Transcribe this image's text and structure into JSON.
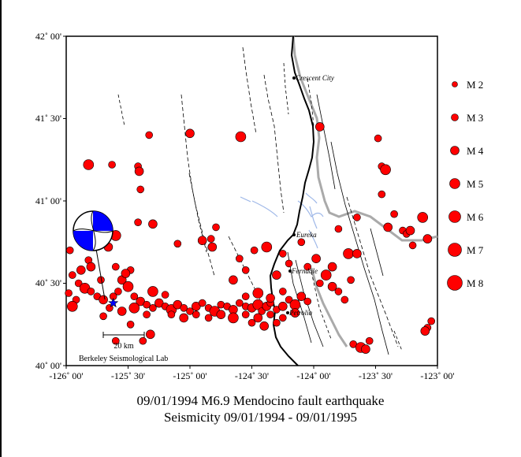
{
  "map": {
    "axes": {
      "lat_labels": [
        "42˚ 00'",
        "41˚ 30'",
        "41˚ 00'",
        "40˚ 30'",
        "40˚ 00'"
      ],
      "lon_labels": [
        "-126˚ 00'",
        "-125˚ 30'",
        "-125˚ 00'",
        "-124˚ 30'",
        "-124˚ 00'",
        "-123˚ 30'",
        "-123˚ 00'"
      ],
      "lat_range": [
        40.0,
        42.0
      ],
      "lon_range": [
        -126.0,
        -123.0
      ]
    },
    "places": {
      "crescent_city": "Crescent City",
      "eureka": "Eureka",
      "ferndale": "Ferndale",
      "petrolia": "Petrolia"
    },
    "scale_bar": "20 km",
    "credit": "Berkeley Seismological Lab",
    "legend": [
      "M 2",
      "M 3",
      "M 4",
      "M 5",
      "M 6",
      "M 7",
      "M 8"
    ],
    "colors": {
      "event": "#ff0000",
      "event_outline": "#000000",
      "water": "#9fb8e8",
      "state_border": "#aaaaaa",
      "mechanism": "#0000ff"
    }
  },
  "chart_data": {
    "type": "scatter",
    "x_label": "",
    "y_label": "",
    "xlim": [
      -126.0,
      -123.0
    ],
    "ylim": [
      40.0,
      42.0
    ],
    "events": [
      [
        -125.82,
        41.22
      ],
      [
        -125.63,
        41.22
      ],
      [
        -125.42,
        41.21
      ],
      [
        -125.41,
        41.18
      ],
      [
        -125.4,
        41.07
      ],
      [
        -125.33,
        41.4
      ],
      [
        -125.0,
        41.41
      ],
      [
        -124.59,
        41.39
      ],
      [
        -125.42,
        40.87
      ],
      [
        -125.3,
        40.86
      ],
      [
        -124.79,
        40.84
      ],
      [
        -124.83,
        40.77
      ],
      [
        -124.9,
        40.76
      ],
      [
        -125.1,
        40.74
      ],
      [
        -125.6,
        40.79
      ],
      [
        -125.66,
        40.72
      ],
      [
        -125.97,
        40.7
      ],
      [
        -125.82,
        40.64
      ],
      [
        -125.8,
        40.6
      ],
      [
        -125.95,
        40.55
      ],
      [
        -125.9,
        40.5
      ],
      [
        -125.85,
        40.47
      ],
      [
        -125.8,
        40.45
      ],
      [
        -125.75,
        40.42
      ],
      [
        -125.7,
        40.4
      ],
      [
        -125.92,
        40.4
      ],
      [
        -125.6,
        40.6
      ],
      [
        -125.55,
        40.52
      ],
      [
        -125.5,
        40.48
      ],
      [
        -125.45,
        40.42
      ],
      [
        -125.4,
        40.39
      ],
      [
        -125.35,
        40.37
      ],
      [
        -125.3,
        40.35
      ],
      [
        -125.25,
        40.38
      ],
      [
        -125.2,
        40.36
      ],
      [
        -125.15,
        40.34
      ],
      [
        -125.1,
        40.37
      ],
      [
        -125.05,
        40.35
      ],
      [
        -125.0,
        40.33
      ],
      [
        -124.95,
        40.36
      ],
      [
        -124.9,
        40.38
      ],
      [
        -124.85,
        40.35
      ],
      [
        -124.8,
        40.33
      ],
      [
        -124.75,
        40.37
      ],
      [
        -124.7,
        40.36
      ],
      [
        -124.65,
        40.34
      ],
      [
        -124.6,
        40.38
      ],
      [
        -124.55,
        40.36
      ],
      [
        -124.5,
        40.35
      ],
      [
        -124.45,
        40.37
      ],
      [
        -124.42,
        40.33
      ],
      [
        -124.38,
        40.36
      ],
      [
        -124.35,
        40.38
      ],
      [
        -124.3,
        40.34
      ],
      [
        -124.25,
        40.36
      ],
      [
        -124.2,
        40.4
      ],
      [
        -124.15,
        40.37
      ],
      [
        -124.1,
        40.42
      ],
      [
        -124.05,
        40.39
      ],
      [
        -125.48,
        40.58
      ],
      [
        -125.52,
        40.56
      ],
      [
        -125.58,
        40.45
      ],
      [
        -125.62,
        40.42
      ],
      [
        -125.3,
        40.45
      ],
      [
        -125.2,
        40.43
      ],
      [
        -125.15,
        40.31
      ],
      [
        -125.05,
        40.29
      ],
      [
        -124.95,
        40.31
      ],
      [
        -124.85,
        40.29
      ],
      [
        -124.75,
        40.31
      ],
      [
        -124.65,
        40.29
      ],
      [
        -124.55,
        40.31
      ],
      [
        -124.45,
        40.29
      ],
      [
        -124.35,
        40.31
      ],
      [
        -124.25,
        40.29
      ],
      [
        -124.15,
        40.32
      ],
      [
        -124.55,
        40.42
      ],
      [
        -124.45,
        40.44
      ],
      [
        -124.35,
        40.41
      ],
      [
        -124.25,
        40.45
      ],
      [
        -124.5,
        40.26
      ],
      [
        -124.4,
        40.24
      ],
      [
        -124.3,
        40.26
      ],
      [
        -124.48,
        40.7
      ],
      [
        -124.38,
        40.72
      ],
      [
        -124.25,
        40.68
      ],
      [
        -124.2,
        40.62
      ],
      [
        -124.3,
        40.55
      ],
      [
        -124.1,
        40.75
      ],
      [
        -124.05,
        40.6
      ],
      [
        -123.98,
        40.65
      ],
      [
        -123.9,
        40.55
      ],
      [
        -123.95,
        40.5
      ],
      [
        -123.85,
        40.48
      ],
      [
        -123.8,
        40.45
      ],
      [
        -123.75,
        40.4
      ],
      [
        -123.85,
        40.6
      ],
      [
        -123.7,
        40.52
      ],
      [
        -123.72,
        40.68
      ],
      [
        -123.65,
        40.68
      ],
      [
        -123.8,
        40.83
      ],
      [
        -123.65,
        40.9
      ],
      [
        -123.95,
        41.45
      ],
      [
        -123.48,
        41.38
      ],
      [
        -123.45,
        41.21
      ],
      [
        -123.42,
        41.19
      ],
      [
        -123.45,
        41.04
      ],
      [
        -123.35,
        40.92
      ],
      [
        -123.4,
        40.84
      ],
      [
        -123.28,
        40.82
      ],
      [
        -123.25,
        40.8
      ],
      [
        -123.22,
        40.82
      ],
      [
        -123.12,
        40.9
      ],
      [
        -123.2,
        40.73
      ],
      [
        -123.08,
        40.77
      ],
      [
        -123.05,
        40.27
      ],
      [
        -123.08,
        40.23
      ],
      [
        -123.1,
        40.21
      ],
      [
        -123.68,
        40.13
      ],
      [
        -123.62,
        40.11
      ],
      [
        -123.58,
        40.1
      ],
      [
        -123.55,
        40.15
      ],
      [
        -125.48,
        40.25
      ],
      [
        -125.32,
        40.19
      ],
      [
        -125.38,
        40.15
      ],
      [
        -125.6,
        40.15
      ],
      [
        -125.95,
        40.36
      ],
      [
        -125.7,
        40.3
      ],
      [
        -125.72,
        40.52
      ],
      [
        -125.88,
        40.58
      ],
      [
        -125.98,
        40.44
      ],
      [
        -125.65,
        40.35
      ],
      [
        -125.55,
        40.33
      ],
      [
        -125.45,
        40.35
      ],
      [
        -125.35,
        40.31
      ],
      [
        -124.82,
        40.72
      ],
      [
        -124.6,
        40.65
      ],
      [
        -124.55,
        40.58
      ],
      [
        -124.65,
        40.52
      ]
    ],
    "mainshock": [
      -125.62,
      40.38
    ],
    "legend_magnitudes": [
      2,
      3,
      4,
      5,
      6,
      7,
      8
    ]
  },
  "caption": {
    "line1": "09/01/1994 M6.9 Mendocino fault earthquake",
    "line2": "Seismicity 09/01/1994 - 09/01/1995"
  }
}
